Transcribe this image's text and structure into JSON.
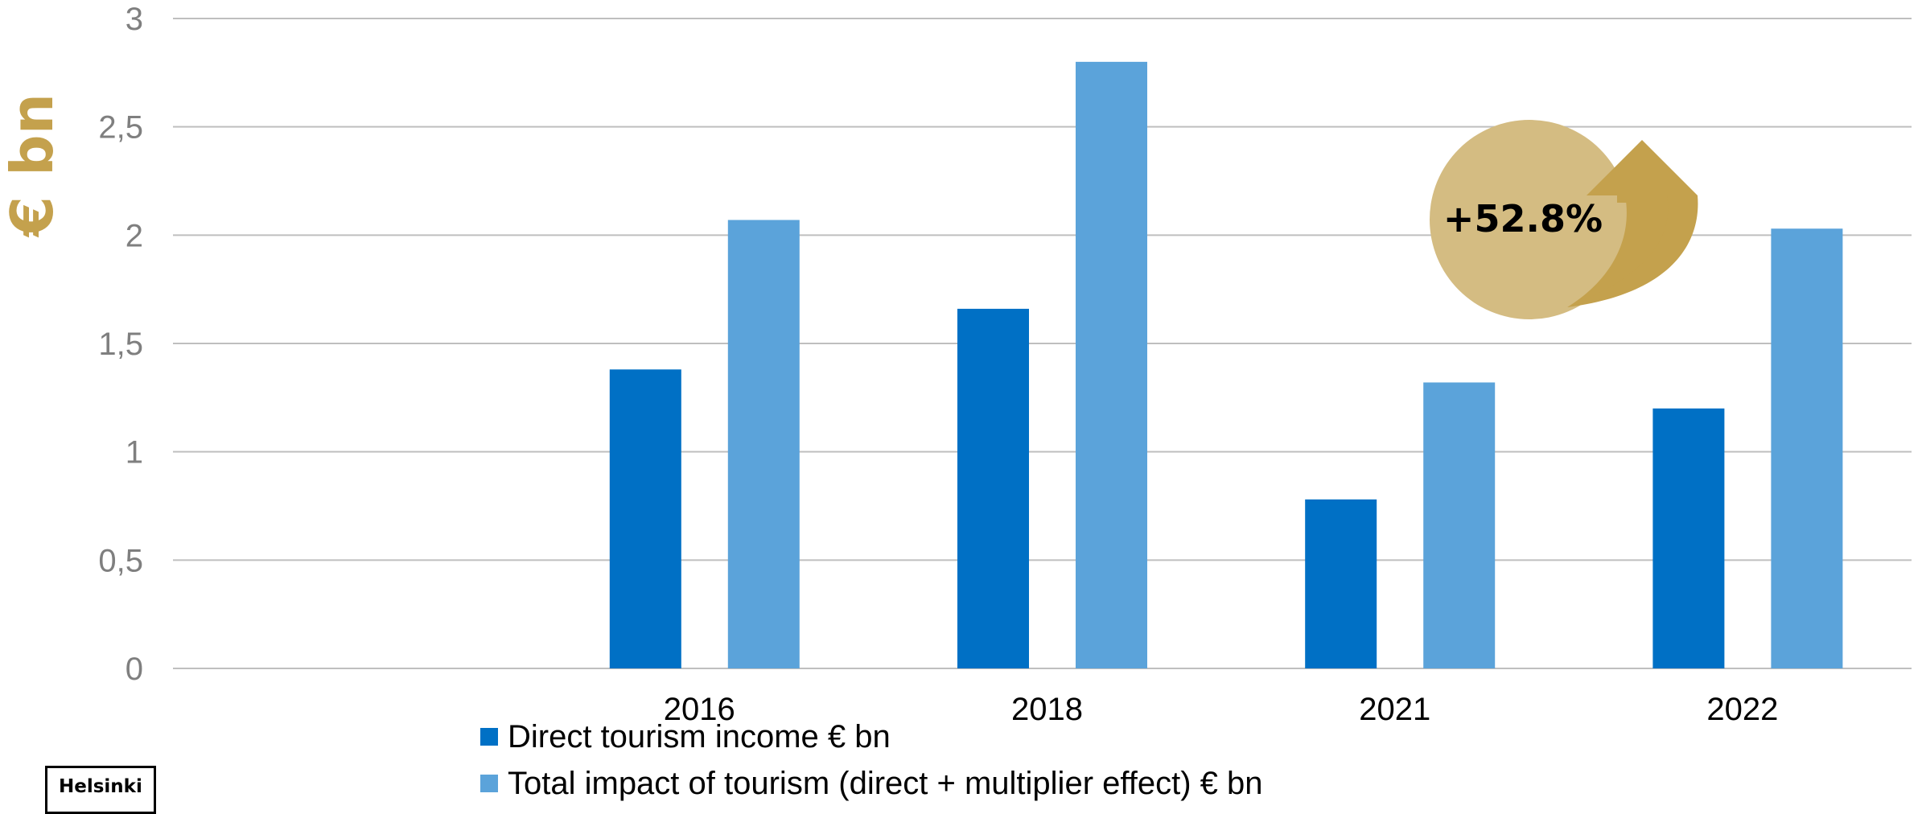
{
  "colors": {
    "direct": "#0070C5",
    "total": "#5BA3DA",
    "accent_gold": "#C4A14D",
    "bubble": "#D4BC82",
    "grid": "#bfbfbf"
  },
  "chart_data": {
    "type": "bar",
    "ylabel": "€ bn",
    "ylim": [
      0,
      3
    ],
    "yticks": [
      "0",
      "0,5",
      "1",
      "1,5",
      "2",
      "2,5",
      "3"
    ],
    "ytick_values": [
      0,
      0.5,
      1,
      1.5,
      2,
      2.5,
      3
    ],
    "grid": true,
    "legend_position": "bottom",
    "categories": [
      "2016",
      "2018",
      "2021",
      "2022"
    ],
    "series": [
      {
        "name": "Direct tourism income € bn",
        "values": [
          1.38,
          1.66,
          0.78,
          1.2
        ]
      },
      {
        "name": "Total impact of tourism (direct + multiplier effect) € bn",
        "values": [
          2.07,
          2.8,
          1.32,
          2.03
        ]
      }
    ],
    "annotation": {
      "text": "+52.8%",
      "icon": "arrow-up-icon"
    }
  },
  "logo": {
    "text": "Helsinki"
  }
}
